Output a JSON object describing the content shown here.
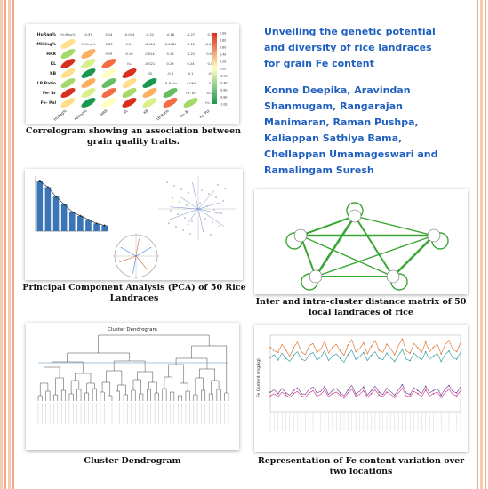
{
  "title": "Unveiling the genetic potential and diversity of rice landraces for grain Fe content",
  "authors": "Konne Deepika, Aravindan Shanmugam, Rangarajan Manimaran, Raman Pushpa, Kaliappan Sathiya Bama, Chellappan Umamageswari and Ramalingam Suresh",
  "captions": {
    "correlogram": "Correlogram showing an association between grain quality traits.",
    "pca": "Principal Component Analysis (PCA) of 50 Rice Landraces",
    "cluster_matrix": "Inter and intra-cluster distance matrix of 50 local landraces of rice",
    "dendrogram": "Cluster Dendrogram",
    "fe_variation": "Representation of Fe content variation over two locations"
  },
  "dendrogram_title": "Cluster Dendrogram",
  "fe_ylabel": "Fe Content (mg/kg)",
  "colors": {
    "accent_blue": "#1f5fbf",
    "stripe": "#f1a886",
    "network_green": "#3aa635"
  },
  "correlogram": {
    "traits": [
      "HuRag%",
      "Milling%",
      "HRR",
      "KL",
      "KB",
      "LB Ratio",
      "Fe- Br",
      "Fe- Pol"
    ],
    "values": [
      "0.37",
      "0.14",
      "-0.044",
      "-0.22",
      "-0.18",
      "-0.27",
      "0.16",
      "0.83",
      "0.54",
      "-0.024",
      "-0.0089",
      "-0.12",
      "-0.0479",
      "0.16",
      "0.014",
      "0.16",
      "-0.22",
      "0.094",
      "-0.021",
      "0.29",
      "0.24",
      "0.05",
      "-0.3",
      "0.1",
      "-0.2",
      "-0.064",
      "0.2",
      "-0.044",
      "0.016",
      "0.45"
    ],
    "legend_ticks": [
      "1.00",
      "0.80",
      "0.60",
      "0.40",
      "0.20",
      "0.00",
      "-0.20",
      "-0.40",
      "-0.60",
      "-0.80",
      "-1.00"
    ]
  },
  "chart_data": [
    {
      "type": "bar",
      "values": [
        26,
        23,
        18,
        14,
        10,
        8,
        6,
        4,
        3
      ]
    },
    {
      "type": "line",
      "series": [
        {
          "values": [
            8.6,
            8.1,
            7.9,
            9.0,
            8.2,
            7.4,
            8.5,
            9.3,
            8.0,
            7.6,
            8.8,
            9.1,
            7.9,
            8.3,
            9.4,
            7.8,
            8.6,
            9.0,
            8.1,
            7.5,
            8.9,
            9.6,
            8.0,
            8.4,
            9.2,
            7.7,
            8.7,
            9.5,
            8.2,
            7.9,
            9.0,
            8.4,
            7.6,
            8.8,
            9.7,
            8.1,
            7.8,
            9.1,
            8.5,
            7.9,
            9.3,
            8.0,
            8.6,
            9.0,
            7.7,
            8.9,
            9.5,
            8.3,
            8.0,
            9.2
          ]
        },
        {
          "values": [
            7.2,
            7.6,
            6.9,
            7.8,
            7.1,
            6.7,
            7.5,
            8.0,
            7.0,
            6.8,
            7.6,
            7.9,
            6.9,
            7.3,
            8.1,
            6.8,
            7.4,
            7.7,
            7.1,
            6.6,
            7.6,
            8.2,
            7.0,
            7.3,
            7.9,
            6.8,
            7.5,
            8.0,
            7.1,
            6.9,
            7.8,
            7.2,
            6.7,
            7.5,
            8.3,
            7.0,
            6.8,
            7.8,
            7.3,
            6.9,
            8.0,
            7.0,
            7.4,
            7.8,
            6.7,
            7.6,
            8.1,
            7.2,
            7.0,
            7.9
          ]
        },
        {
          "values": [
            2.6,
            2.9,
            2.4,
            3.1,
            2.5,
            2.2,
            2.8,
            3.2,
            2.4,
            2.3,
            3.0,
            3.3,
            2.5,
            2.7,
            3.4,
            2.3,
            2.8,
            3.1,
            2.5,
            2.1,
            2.9,
            3.5,
            2.4,
            2.7,
            3.3,
            2.2,
            2.8,
            3.4,
            2.6,
            2.3,
            3.1,
            2.7,
            2.2,
            2.9,
            3.6,
            2.5,
            2.3,
            3.2,
            2.8,
            2.4,
            3.4,
            2.5,
            2.8,
            3.1,
            2.2,
            3.0,
            3.5,
            2.7,
            2.5,
            3.3
          ]
        },
        {
          "values": [
            2.1,
            2.4,
            2.0,
            2.6,
            2.2,
            1.9,
            2.4,
            2.7,
            2.1,
            1.9,
            2.5,
            2.8,
            2.1,
            2.3,
            2.9,
            2.0,
            2.4,
            2.6,
            2.2,
            1.8,
            2.5,
            3.0,
            2.1,
            2.3,
            2.8,
            1.9,
            2.4,
            2.9,
            2.2,
            2.0,
            2.6,
            2.3,
            1.9,
            2.5,
            3.1,
            2.1,
            2.0,
            2.7,
            2.4,
            2.0,
            2.9,
            2.1,
            2.4,
            2.6,
            1.9,
            2.5,
            3.0,
            2.3,
            2.1,
            2.8
          ]
        }
      ]
    }
  ]
}
